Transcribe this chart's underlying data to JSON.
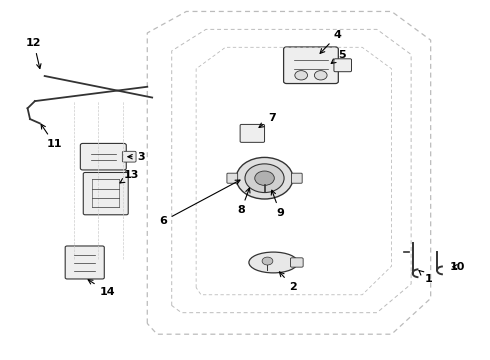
{
  "bg_color": "#ffffff",
  "line_color": "#333333",
  "gray_color": "#aaaaaa",
  "fig_width": 4.9,
  "fig_height": 3.6,
  "dpi": 100
}
